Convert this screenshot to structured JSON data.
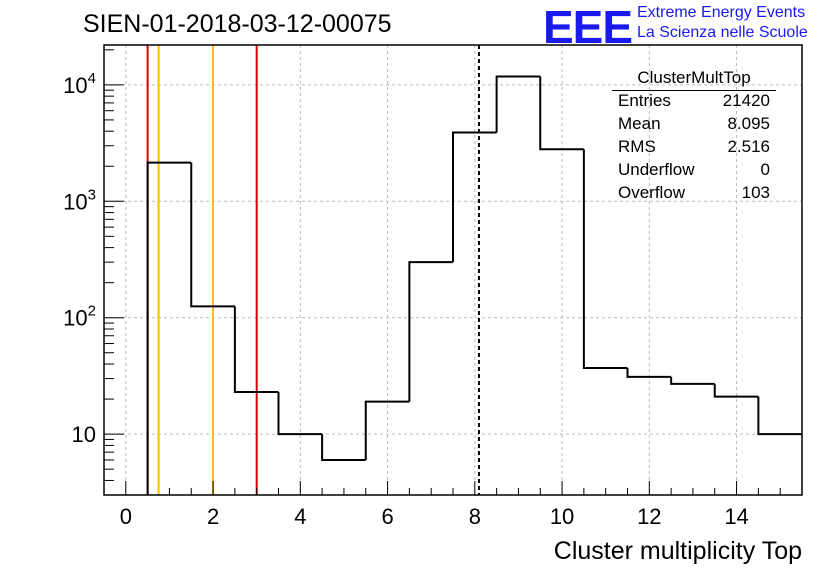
{
  "title": "SIEN-01-2018-03-12-00075",
  "logo": {
    "mark": "EEE",
    "line1": "Extreme Energy Events",
    "line2": "La Scienza nelle Scuole",
    "color": "#1a1aee"
  },
  "stats_box": {
    "name": "ClusterMultTop",
    "rows": [
      {
        "label": "Entries",
        "value": "21420"
      },
      {
        "label": "Mean",
        "value": "8.095"
      },
      {
        "label": "RMS",
        "value": "2.516"
      },
      {
        "label": "Underflow",
        "value": "0"
      },
      {
        "label": "Overflow",
        "value": "103"
      }
    ]
  },
  "chart_data": {
    "type": "bar",
    "histogram": true,
    "xlabel": "Cluster multiplicity Top",
    "ylabel": "",
    "xlim": [
      -0.5,
      15.5
    ],
    "ylim": [
      3,
      22000
    ],
    "yscale": "log",
    "grid": true,
    "x_ticks": [
      0,
      2,
      4,
      6,
      8,
      10,
      12,
      14
    ],
    "y_ticks": [
      {
        "value": 10,
        "base": "10",
        "exp": ""
      },
      {
        "value": 100,
        "base": "10",
        "exp": "2"
      },
      {
        "value": 1000,
        "base": "10",
        "exp": "3"
      },
      {
        "value": 10000,
        "base": "10",
        "exp": "4"
      }
    ],
    "bin_width": 1,
    "bin_centers": [
      0,
      1,
      2,
      3,
      4,
      5,
      6,
      7,
      8,
      9,
      10,
      11,
      12,
      13,
      14,
      15
    ],
    "values": [
      0,
      2150,
      125,
      23,
      10,
      6,
      19,
      300,
      3900,
      11800,
      2800,
      37,
      31,
      27,
      21,
      10
    ],
    "line_color": "#000000",
    "markers": [
      {
        "x": 0.5,
        "color": "#dd0000",
        "style": "solid"
      },
      {
        "x": 3.0,
        "color": "#dd0000",
        "style": "solid"
      },
      {
        "x": 0.75,
        "color": "#ffbb00",
        "style": "solid"
      },
      {
        "x": 2.0,
        "color": "#ffbb00",
        "style": "solid"
      },
      {
        "x": 8.095,
        "color": "#000000",
        "style": "dashed"
      }
    ]
  }
}
